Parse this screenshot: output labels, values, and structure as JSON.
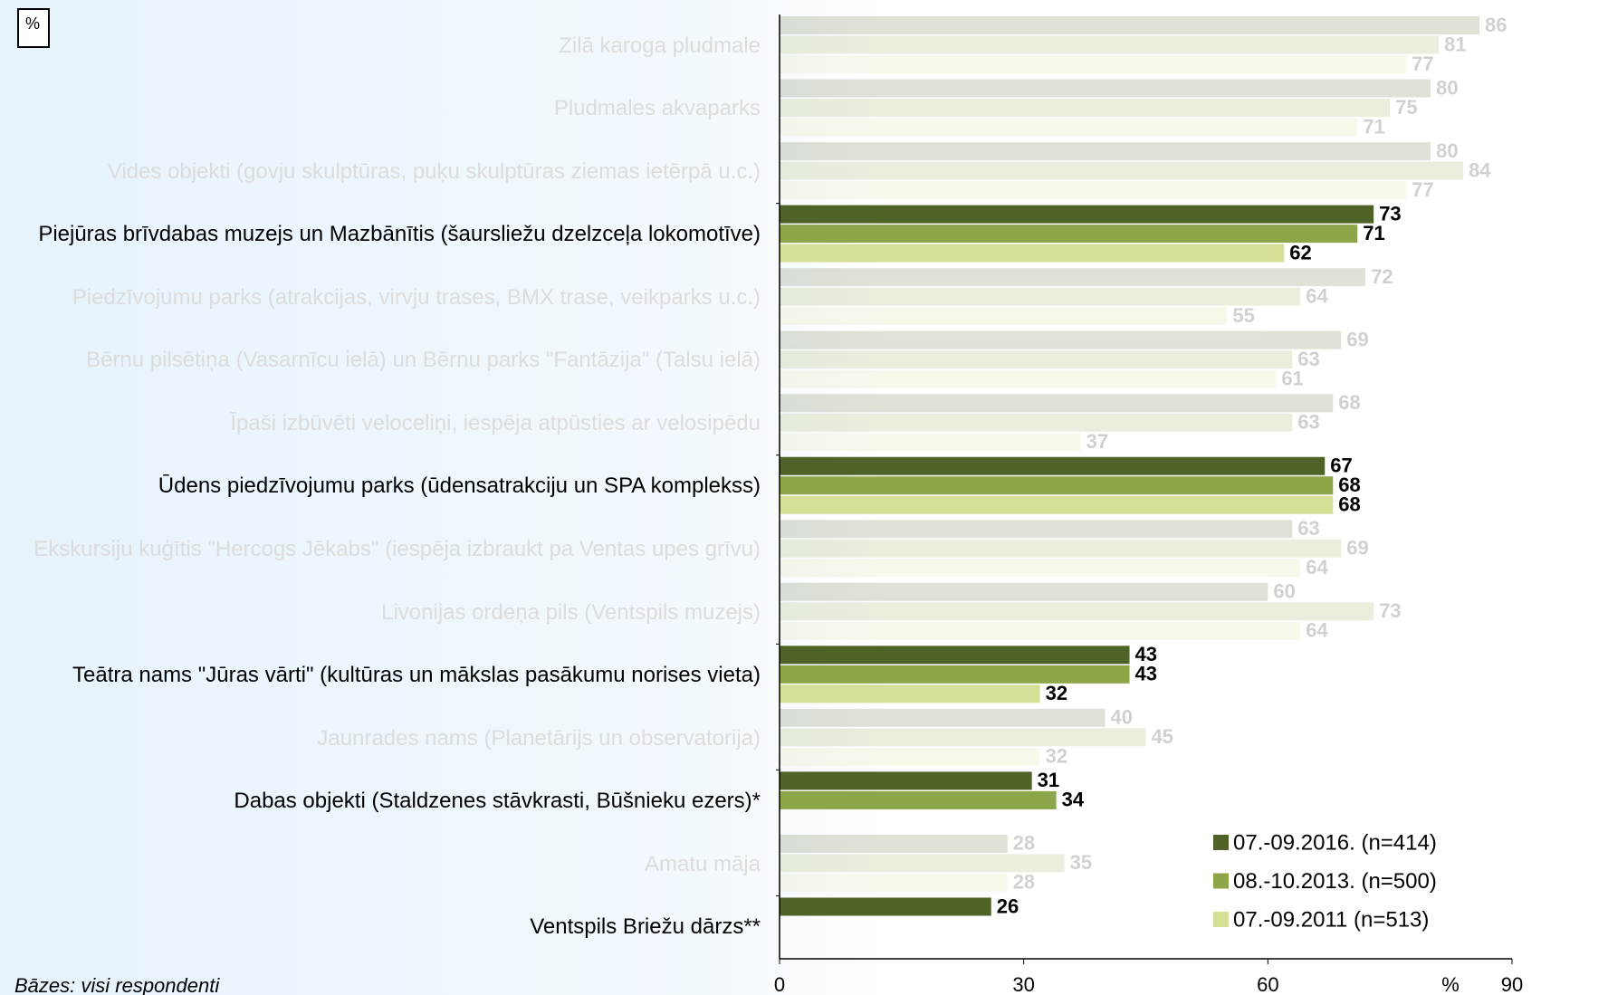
{
  "chart_data": {
    "type": "hbar",
    "corner_label": "%",
    "x_unit": "%",
    "footnote": "Bāzes: visi respondenti",
    "categories": [
      "Zilā karoga pludmale",
      "Pludmales akvaparks",
      "Vides objekti (govju skulptūras, puķu skulptūras ziemas ietērpā u.c.)",
      "Piejūras brīvdabas muzejs un Mazbānītis (šaursliežu dzelzceļa lokomotīve)",
      "Piedzīvojumu parks (atrakcijas, virvju trases, BMX trase, veikparks u.c.)",
      "Bērnu pilsētiņa (Vasarnīcu ielā) un Bērnu parks \"Fantāzija\" (Talsu ielā)",
      "Īpaši izbūvēti veloceliņi, iespēja atpūsties ar velosipēdu",
      "Ūdens piedzīvojumu parks (ūdensatrakciju un SPA komplekss)",
      "Ekskursiju kuģītis \"Hercogs Jēkabs\" (iespēja izbraukt pa Ventas upes grīvu)",
      "Livonijas ordeņa pils (Ventspils muzejs)",
      "Teātra nams \"Jūras vārti\" (kultūras un mākslas pasākumu norises vieta)",
      "Jaunrades nams (Planetārijs un observatorija)",
      "Dabas objekti (Staldzenes stāvkrasti, Būšnieku ezers)*",
      "Amatu māja",
      "Ventspils Briežu dārzs**"
    ],
    "highlight": [
      3,
      7,
      10,
      12,
      14
    ],
    "series": [
      {
        "name": "07.-09.2016. (n=414)",
        "color": "#4f6228",
        "values": [
          86,
          80,
          80,
          73,
          72,
          69,
          68,
          67,
          63,
          60,
          43,
          40,
          31,
          28,
          26
        ]
      },
      {
        "name": "08.-10.2013. (n=500)",
        "color": "#8ea64a",
        "values": [
          81,
          75,
          84,
          71,
          64,
          63,
          63,
          68,
          69,
          73,
          43,
          45,
          34,
          35,
          null
        ]
      },
      {
        "name": "07.-09.2011 (n=513)",
        "color": "#d7df97",
        "values": [
          77,
          71,
          77,
          62,
          55,
          61,
          37,
          68,
          64,
          64,
          32,
          32,
          null,
          28,
          null
        ]
      }
    ],
    "xlim": [
      0,
      90
    ],
    "xticks": [
      0,
      30,
      60,
      90
    ]
  }
}
